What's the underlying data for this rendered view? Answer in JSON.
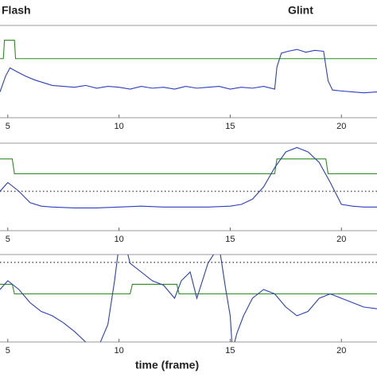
{
  "chart_data": [
    {
      "type": "line",
      "annotations": [
        "Flash",
        "Glint"
      ],
      "xlim": [
        4.65,
        21.6
      ],
      "ylim": [
        0,
        1
      ],
      "xticks": [
        5,
        10,
        15,
        20
      ],
      "series": [
        {
          "color": "#2e8b22",
          "style": "solid",
          "x": [
            4.65,
            4.8,
            4.85,
            5.3,
            5.35,
            21.6
          ],
          "values": [
            0.64,
            0.64,
            0.84,
            0.84,
            0.64,
            0.64
          ]
        },
        {
          "color": "#2b3fbf",
          "style": "solid",
          "x": [
            4.65,
            4.9,
            5.1,
            5.4,
            5.8,
            6.2,
            6.6,
            7,
            7.5,
            8,
            8.5,
            9,
            9.5,
            10,
            10.5,
            11,
            11.5,
            12,
            12.5,
            13,
            13.5,
            14,
            14.5,
            15,
            15.5,
            16,
            16.5,
            17,
            17.1,
            17.3,
            17.6,
            18,
            18.4,
            18.8,
            19.2,
            19.4,
            19.6,
            20,
            20.5,
            21,
            21.6
          ],
          "values": [
            0.28,
            0.45,
            0.54,
            0.5,
            0.45,
            0.41,
            0.38,
            0.35,
            0.34,
            0.33,
            0.35,
            0.32,
            0.34,
            0.33,
            0.31,
            0.34,
            0.32,
            0.33,
            0.31,
            0.34,
            0.32,
            0.33,
            0.34,
            0.31,
            0.33,
            0.32,
            0.34,
            0.31,
            0.55,
            0.7,
            0.72,
            0.74,
            0.71,
            0.73,
            0.72,
            0.4,
            0.3,
            0.29,
            0.28,
            0.27,
            0.28
          ]
        }
      ]
    },
    {
      "type": "line",
      "xlim": [
        4.65,
        21.6
      ],
      "ylim": [
        0,
        1
      ],
      "xticks": [
        5,
        10,
        15,
        20
      ],
      "series": [
        {
          "color": "#555555",
          "style": "dotted",
          "x": [
            4.65,
            21.6
          ],
          "values": [
            0.45,
            0.45
          ]
        },
        {
          "color": "#2e8b22",
          "style": "solid",
          "x": [
            4.65,
            5.2,
            5.3,
            17.0,
            17.1,
            19.3,
            19.4,
            21.6
          ],
          "values": [
            0.82,
            0.82,
            0.65,
            0.65,
            0.82,
            0.82,
            0.65,
            0.65
          ]
        },
        {
          "color": "#2b3fbf",
          "style": "solid",
          "x": [
            4.65,
            5,
            5.5,
            6,
            6.5,
            7,
            8,
            9,
            10,
            11,
            12,
            13,
            14,
            15,
            15.5,
            16,
            16.5,
            17,
            17.5,
            18,
            18.5,
            19,
            19.5,
            20,
            20.5,
            21,
            21.6
          ],
          "values": [
            0.45,
            0.55,
            0.45,
            0.32,
            0.28,
            0.27,
            0.26,
            0.26,
            0.27,
            0.28,
            0.27,
            0.27,
            0.27,
            0.28,
            0.3,
            0.36,
            0.5,
            0.72,
            0.9,
            0.95,
            0.9,
            0.78,
            0.55,
            0.3,
            0.28,
            0.27,
            0.27
          ]
        }
      ]
    },
    {
      "type": "line",
      "xlabel": "time (frame)",
      "xlim": [
        4.65,
        21.6
      ],
      "ylim": [
        0,
        1
      ],
      "xticks": [
        5,
        10,
        15,
        20
      ],
      "series": [
        {
          "color": "#555555",
          "style": "dotted",
          "x": [
            4.65,
            21.6
          ],
          "values": [
            0.91,
            0.91
          ]
        },
        {
          "color": "#2e8b22",
          "style": "solid",
          "x": [
            4.65,
            5.2,
            5.3,
            10.5,
            10.6,
            12.6,
            12.7,
            21.6
          ],
          "values": [
            0.66,
            0.66,
            0.55,
            0.55,
            0.66,
            0.66,
            0.55,
            0.55
          ]
        },
        {
          "color": "#2b3fbf",
          "style": "solid",
          "x": [
            4.65,
            5,
            5.5,
            6,
            6.5,
            7,
            7.5,
            8,
            8.5,
            9,
            9.5,
            9.8,
            10,
            10.2,
            10.5,
            11,
            11.5,
            12,
            12.5,
            12.8,
            13.2,
            13.5,
            14,
            14.5,
            14.8,
            15,
            15.1,
            15.3,
            15.6,
            16,
            16.5,
            17,
            17.5,
            18,
            18.5,
            19,
            19.5,
            20,
            20.5,
            21,
            21.6
          ],
          "values": [
            0.6,
            0.7,
            0.6,
            0.45,
            0.35,
            0.3,
            0.22,
            0.12,
            0.0,
            -0.1,
            0.2,
            0.7,
            1.1,
            1.2,
            0.9,
            0.8,
            0.7,
            0.65,
            0.5,
            0.7,
            0.8,
            0.5,
            0.9,
            1.1,
            0.6,
            0.3,
            -0.1,
            0.1,
            0.3,
            0.5,
            0.6,
            0.55,
            0.4,
            0.3,
            0.35,
            0.5,
            0.55,
            0.5,
            0.45,
            0.4,
            0.38
          ]
        }
      ]
    }
  ]
}
